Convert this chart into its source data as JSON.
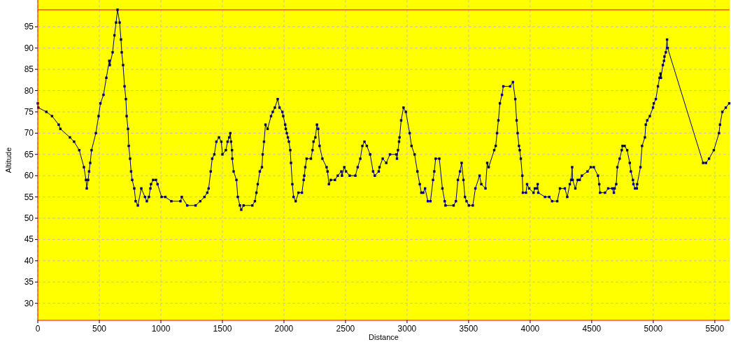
{
  "chart_data": {
    "type": "line",
    "xlabel": "Distance",
    "ylabel": "Altitude",
    "xlim": [
      0,
      5620
    ],
    "ylim": [
      26,
      101.3
    ],
    "xticks": [
      0,
      500,
      1000,
      1500,
      2000,
      2500,
      3000,
      3500,
      4000,
      4500,
      5000,
      5500
    ],
    "yticks": [
      30,
      35,
      40,
      45,
      50,
      55,
      60,
      65,
      70,
      75,
      80,
      85,
      90,
      95
    ],
    "grid": true,
    "marker": "square",
    "line_style": "solid",
    "ref_lines": [
      {
        "axis": "y",
        "value": 99,
        "color": "#ff0000"
      }
    ],
    "series": [
      {
        "color": "#000066",
        "x": [
          0,
          4,
          70,
          116,
          170,
          184,
          261,
          295,
          337,
          375,
          392,
          398,
          409,
          417,
          426,
          437,
          472,
          494,
          509,
          534,
          557,
          581,
          585,
          608,
          623,
          636,
          648,
          665,
          676,
          682,
          693,
          705,
          716,
          722,
          733,
          739,
          750,
          758,
          767,
          784,
          795,
          813,
          841,
          871,
          886,
          903,
          915,
          920,
          937,
          960,
          973,
          1006,
          1036,
          1085,
          1159,
          1170,
          1214,
          1282,
          1320,
          1354,
          1377,
          1388,
          1405,
          1417,
          1434,
          1451,
          1472,
          1491,
          1500,
          1528,
          1542,
          1555,
          1564,
          1570,
          1578,
          1580,
          1591,
          1614,
          1625,
          1642,
          1653,
          1672,
          1743,
          1764,
          1776,
          1787,
          1804,
          1821,
          1827,
          1838,
          1850,
          1867,
          1895,
          1909,
          1926,
          1949,
          1964,
          1987,
          1994,
          2010,
          2015,
          2023,
          2032,
          2040,
          2051,
          2057,
          2068,
          2078,
          2095,
          2118,
          2146,
          2160,
          2165,
          2173,
          2184,
          2219,
          2232,
          2240,
          2255,
          2268,
          2278,
          2289,
          2312,
          2346,
          2354,
          2365,
          2380,
          2414,
          2437,
          2466,
          2471,
          2490,
          2504,
          2534,
          2580,
          2599,
          2620,
          2637,
          2654,
          2673,
          2700,
          2724,
          2738,
          2770,
          2776,
          2802,
          2831,
          2861,
          2913,
          2918,
          2926,
          2935,
          2939,
          2952,
          2971,
          2990,
          3021,
          3036,
          3061,
          3084,
          3103,
          3116,
          3131,
          3146,
          3169,
          3190,
          3211,
          3221,
          3232,
          3262,
          3287,
          3306,
          3312,
          3378,
          3397,
          3413,
          3430,
          3443,
          3458,
          3470,
          3483,
          3502,
          3534,
          3555,
          3589,
          3603,
          3637,
          3651,
          3663,
          3708,
          3720,
          3731,
          3742,
          3754,
          3771,
          3782,
          3837,
          3860,
          3879,
          3890,
          3898,
          3909,
          3915,
          3924,
          3936,
          3941,
          3966,
          3975,
          3992,
          4027,
          4038,
          4055,
          4061,
          4066,
          4121,
          4155,
          4178,
          4220,
          4242,
          4282,
          4301,
          4322,
          4333,
          4341,
          4345,
          4367,
          4386,
          4402,
          4420,
          4466,
          4492,
          4517,
          4551,
          4561,
          4568,
          4608,
          4634,
          4667,
          4680,
          4686,
          4699,
          4708,
          4727,
          4744,
          4750,
          4767,
          4788,
          4809,
          4818,
          4835,
          4839,
          4852,
          4866,
          4869,
          4896,
          4909,
          4932,
          4939,
          4951,
          4972,
          4998,
          5004,
          5021,
          5038,
          5051,
          5059,
          5062,
          5078,
          5087,
          5091,
          5102,
          5112,
          5117,
          5405,
          5428,
          5453,
          5492,
          5534,
          5542,
          5561,
          5589,
          5617
        ],
        "values": [
          77,
          76,
          75,
          74,
          72,
          71,
          69,
          68,
          66,
          62,
          59,
          57,
          59,
          61,
          63,
          66,
          70,
          74,
          77,
          79,
          83,
          87,
          86,
          89,
          93,
          96,
          99,
          96,
          92,
          89,
          86,
          81,
          78,
          74,
          71,
          67,
          64,
          61,
          59,
          57,
          54,
          53,
          57,
          55,
          54,
          55,
          57,
          58,
          59,
          59,
          58,
          55,
          55,
          54,
          54,
          55,
          53,
          53,
          54,
          55,
          56,
          57,
          61,
          64,
          65,
          68,
          69,
          68,
          65,
          66,
          68,
          69,
          70,
          68,
          66,
          64,
          61,
          59,
          55,
          53,
          52,
          53,
          53,
          54,
          56,
          58,
          61,
          62,
          65,
          68,
          72,
          71,
          74,
          75,
          76,
          78,
          76,
          75,
          74,
          72,
          71,
          70,
          69,
          68,
          66,
          63,
          58,
          55,
          54,
          56,
          56,
          59,
          60,
          62,
          64,
          64,
          66,
          68,
          69,
          72,
          71,
          67,
          64,
          62,
          61,
          58,
          59,
          59,
          60,
          61,
          60,
          62,
          61,
          60,
          60,
          62,
          64,
          67,
          68,
          67,
          65,
          61,
          60,
          61,
          62,
          64,
          63,
          65,
          65,
          64,
          66,
          68,
          69,
          73,
          76,
          75,
          70,
          67,
          65,
          61,
          58,
          56,
          56,
          57,
          54,
          54,
          59,
          61,
          64,
          64,
          57,
          54,
          53,
          53,
          54,
          59,
          61,
          63,
          59,
          55,
          54,
          53,
          53,
          57,
          60,
          58,
          57,
          63,
          62,
          66,
          67,
          70,
          73,
          77,
          79,
          81,
          81,
          82,
          78,
          73,
          70,
          67,
          66,
          64,
          60,
          56,
          56,
          58,
          57,
          56,
          57,
          57,
          58,
          56,
          55,
          55,
          54,
          54,
          57,
          57,
          55,
          58,
          59,
          62,
          59,
          57,
          59,
          59,
          60,
          61,
          62,
          62,
          60,
          58,
          56,
          56,
          57,
          57,
          56,
          57,
          58,
          62,
          64,
          66,
          67,
          67,
          66,
          63,
          61,
          59,
          58,
          57,
          57,
          58,
          62,
          67,
          69,
          72,
          73,
          74,
          76,
          77,
          78,
          81,
          83,
          84,
          83,
          86,
          87,
          88,
          89,
          92,
          90,
          63,
          63,
          64,
          66,
          70,
          72,
          75,
          76,
          77
        ]
      }
    ]
  }
}
